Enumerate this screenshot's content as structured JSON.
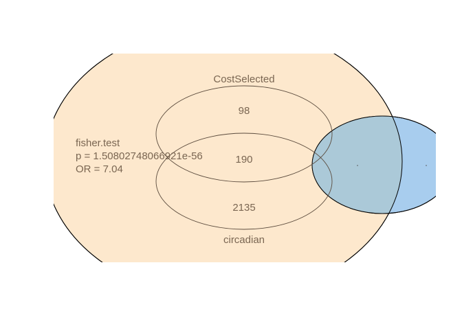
{
  "diagram": {
    "type": "venn",
    "sets": {
      "cost_selected": {
        "label": "CostSelected"
      },
      "circadian": {
        "label": "circadian"
      }
    },
    "regions": {
      "cost_selected_only": 98,
      "intersection": 190,
      "circadian_only": 2135
    },
    "stats": {
      "test": "fisher.test",
      "p_value": "p = 1.50802748066921e-56",
      "odds_ratio": "OR = 7.04"
    },
    "colors": {
      "background_set": "#fde8cd",
      "blue_set": "#a8cdee",
      "blue_overlap": "#abc9d8",
      "text": "#7a6652",
      "outline": "#000000",
      "ellipse_outline": "#5a4a3c"
    }
  }
}
